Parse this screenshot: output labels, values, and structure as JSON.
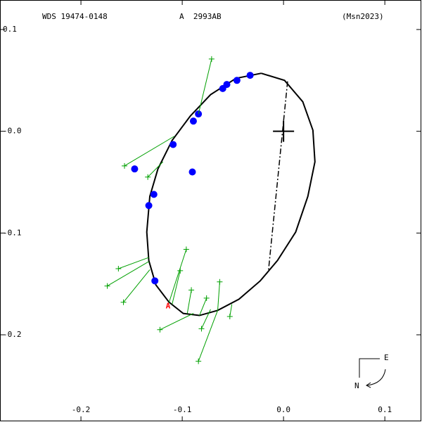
{
  "chart_data": {
    "type": "scatter",
    "title": "WDS 19474-0148",
    "subtitle": "A  2993AB",
    "reference": "(Msn2023)",
    "xlim": [
      -0.2799,
      0.136
    ],
    "ylim": [
      -0.285,
      0.129
    ],
    "xticks": [
      -0.2,
      -0.1,
      {
        "value": 0,
        "label": "0.0"
      },
      0.1
    ],
    "yticks": [
      0.1,
      {
        "value": 0,
        "label": "-0.0"
      },
      -0.1,
      -0.2
    ],
    "orbit": {
      "color": "#000000",
      "x": [
        -0.022,
        0.001,
        0.019,
        0.029,
        0.031,
        0.024,
        0.012,
        -0.006,
        -0.023,
        -0.044,
        -0.065,
        -0.083,
        -0.099,
        -0.113,
        -0.126,
        -0.133,
        -0.135,
        -0.132,
        -0.124,
        -0.11,
        -0.092,
        -0.072,
        -0.047,
        -0.022
      ],
      "y": [
        0.057,
        0.05,
        0.029,
        0.001,
        -0.03,
        -0.064,
        -0.099,
        -0.127,
        -0.147,
        -0.165,
        -0.176,
        -0.181,
        -0.179,
        -0.168,
        -0.151,
        -0.127,
        -0.099,
        -0.064,
        -0.037,
        -0.009,
        0.015,
        0.036,
        0.052,
        0.057
      ]
    },
    "node_line": {
      "x": [
        0.004,
        -0.015
      ],
      "y": [
        0.049,
        -0.138
      ]
    },
    "primary": {
      "x": 0,
      "y": 0
    },
    "observations": [
      {
        "marker": "dot",
        "color": "#0000ff",
        "x": [
          -0.033,
          -0.046,
          -0.056,
          -0.06,
          -0.084,
          -0.089,
          -0.109,
          -0.09,
          -0.147,
          -0.128,
          -0.133,
          -0.127
        ],
        "y": [
          0.055,
          0.05,
          0.046,
          0.042,
          0.017,
          0.01,
          -0.013,
          -0.04,
          -0.037,
          -0.062,
          -0.073,
          -0.147
        ]
      },
      {
        "marker": "plus",
        "color": "#00a000",
        "x": [
          -0.071,
          -0.157,
          -0.134,
          -0.163,
          -0.174,
          -0.158,
          -0.096,
          -0.102,
          -0.091,
          -0.076,
          -0.063,
          -0.053,
          -0.081,
          -0.122,
          -0.084
        ],
        "y": [
          0.071,
          -0.034,
          -0.045,
          -0.135,
          -0.152,
          -0.168,
          -0.116,
          -0.137,
          -0.156,
          -0.164,
          -0.148,
          -0.182,
          -0.194,
          -0.195,
          -0.226
        ],
        "fit_x": [
          -0.084,
          -0.108,
          -0.119,
          -0.133,
          -0.133,
          -0.132,
          -0.113,
          -0.11,
          -0.095,
          -0.083,
          -0.065,
          -0.051,
          -0.072,
          -0.089,
          -0.065
        ],
        "fit_y": [
          0.017,
          -0.005,
          -0.03,
          -0.124,
          -0.128,
          -0.136,
          -0.168,
          -0.17,
          -0.179,
          -0.181,
          -0.176,
          -0.17,
          -0.175,
          -0.179,
          -0.176
        ]
      }
    ],
    "annotations": [
      {
        "text": "A",
        "x": -0.114,
        "y": -0.172,
        "color": "#ff0000"
      }
    ],
    "compass": {
      "east": "E",
      "north": "N"
    }
  }
}
